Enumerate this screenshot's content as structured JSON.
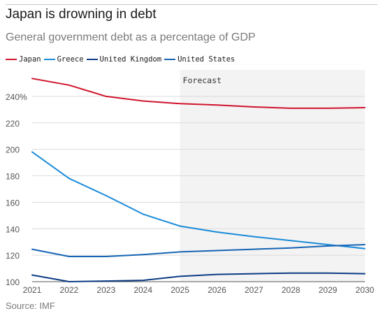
{
  "header": {
    "title": "Japan is drowning in debt",
    "subtitle": "General government debt as a percentage of GDP"
  },
  "source": "Source: IMF",
  "chart_data": {
    "type": "line",
    "title": "Japan is drowning in debt",
    "subtitle": "General government debt as a percentage of GDP",
    "xlabel": "",
    "ylabel": "",
    "x": [
      2021,
      2022,
      2023,
      2024,
      2025,
      2026,
      2027,
      2028,
      2029,
      2030
    ],
    "x_tick_labels": [
      "2021",
      "2022",
      "2023",
      "2024",
      "2025",
      "2026",
      "2027",
      "2028",
      "2029",
      "2030"
    ],
    "ylim": [
      100,
      260
    ],
    "y_ticks": [
      100,
      120,
      140,
      160,
      180,
      200,
      220,
      240
    ],
    "y_tick_labels": [
      "100",
      "120",
      "140",
      "160",
      "180",
      "200",
      "220",
      "240%"
    ],
    "grid": true,
    "legend_position": "top-left",
    "forecast": {
      "label": "Forecast",
      "start": 2025,
      "end": 2030,
      "shade_color": "#f3f3f3"
    },
    "series": [
      {
        "name": "Japan",
        "color": "#d0142c",
        "values": [
          253.5,
          248.5,
          240,
          236.5,
          234.5,
          233.5,
          232,
          231,
          231,
          231.5
        ]
      },
      {
        "name": "Greece",
        "color": "#1a8bd9",
        "values": [
          198,
          178,
          165,
          151,
          142,
          137.5,
          134,
          131,
          128,
          125
        ]
      },
      {
        "name": "United Kingdom",
        "color": "#0c3c84",
        "values": [
          105,
          100,
          100.5,
          101,
          104,
          105.5,
          106,
          106.5,
          106.5,
          106
        ]
      },
      {
        "name": "United States",
        "color": "#1664b4",
        "values": [
          124.5,
          119,
          119,
          120.5,
          122.5,
          123.5,
          124.5,
          125.5,
          127,
          128
        ]
      }
    ]
  }
}
